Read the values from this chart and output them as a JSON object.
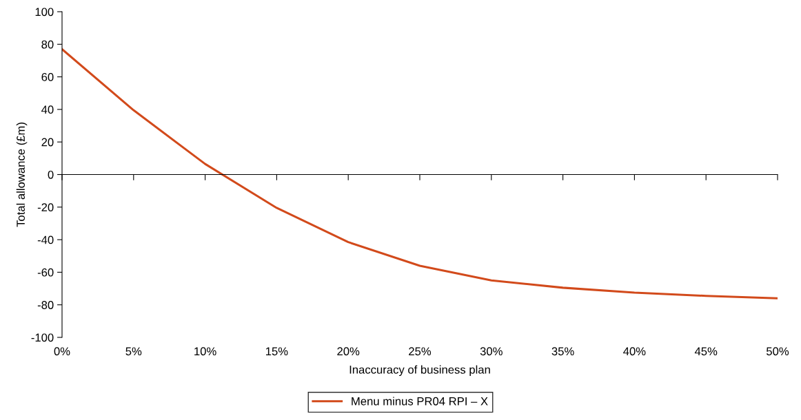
{
  "chart_data": {
    "type": "line",
    "xlabel": "Inaccuracy of business plan",
    "ylabel": "Total allowance (£m)",
    "x": [
      0,
      5,
      10,
      15,
      20,
      25,
      30,
      35,
      40,
      45,
      50
    ],
    "series": [
      {
        "name": "Menu minus PR04 RPI – X",
        "color": "#d24a1b",
        "values": [
          77,
          39.5,
          6.5,
          -20.5,
          -41.5,
          -56,
          -65,
          -69.5,
          -72.5,
          -74.5,
          -76
        ]
      }
    ],
    "xlim": [
      0,
      50
    ],
    "xticks": [
      {
        "value": 0,
        "label": "0%"
      },
      {
        "value": 5,
        "label": "5%"
      },
      {
        "value": 10,
        "label": "10%"
      },
      {
        "value": 15,
        "label": "15%"
      },
      {
        "value": 20,
        "label": "20%"
      },
      {
        "value": 25,
        "label": "25%"
      },
      {
        "value": 30,
        "label": "30%"
      },
      {
        "value": 35,
        "label": "35%"
      },
      {
        "value": 40,
        "label": "40%"
      },
      {
        "value": 45,
        "label": "45%"
      },
      {
        "value": 50,
        "label": "50%"
      }
    ],
    "ylim": [
      -100,
      100
    ],
    "yticks": [
      -100,
      -80,
      -60,
      -40,
      -20,
      0,
      20,
      40,
      60,
      80,
      100
    ],
    "legend": "bottom",
    "marker": "none",
    "line_style": "solid"
  }
}
